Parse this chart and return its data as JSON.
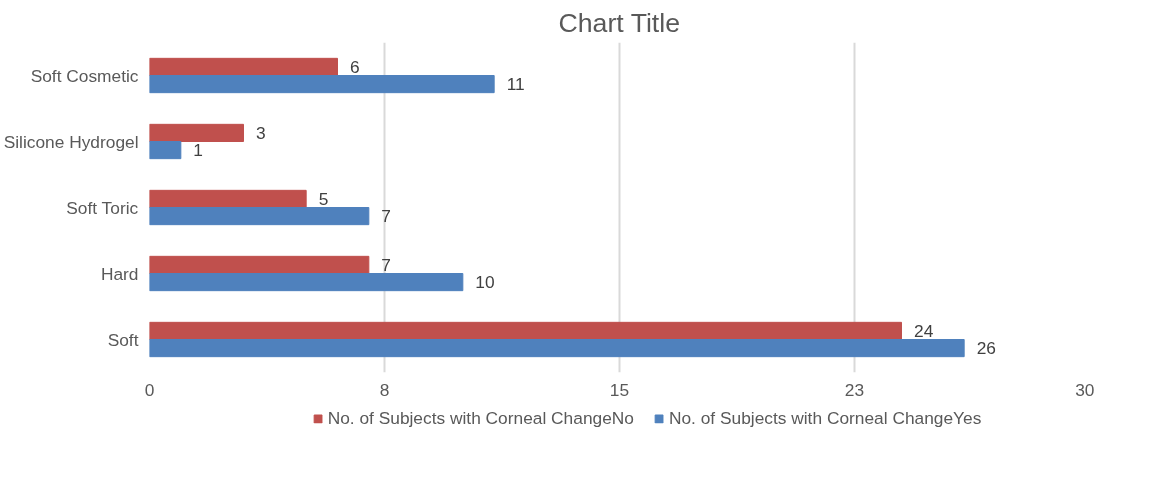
{
  "chart_data": {
    "type": "bar",
    "orientation": "horizontal",
    "title": "Chart Title",
    "categories": [
      "Soft Cosmetic",
      "Silicone Hydrogel",
      "Soft Toric",
      "Hard",
      "Soft"
    ],
    "series": [
      {
        "name": "No. of Subjects with Corneal ChangeNo",
        "color": "#c0504d",
        "values": [
          6,
          3,
          5,
          7,
          24
        ]
      },
      {
        "name": "No. of Subjects with Corneal ChangeYes",
        "color": "#4f81bd",
        "values": [
          11,
          1,
          7,
          10,
          26
        ]
      }
    ],
    "xlim": [
      0,
      30
    ],
    "xticks": [
      0,
      {
        "value": 7.5,
        "label": "8"
      },
      15,
      {
        "value": 22.5,
        "label": "23"
      },
      30
    ],
    "grid": "x",
    "legend": "bottom",
    "data_labels": true
  }
}
